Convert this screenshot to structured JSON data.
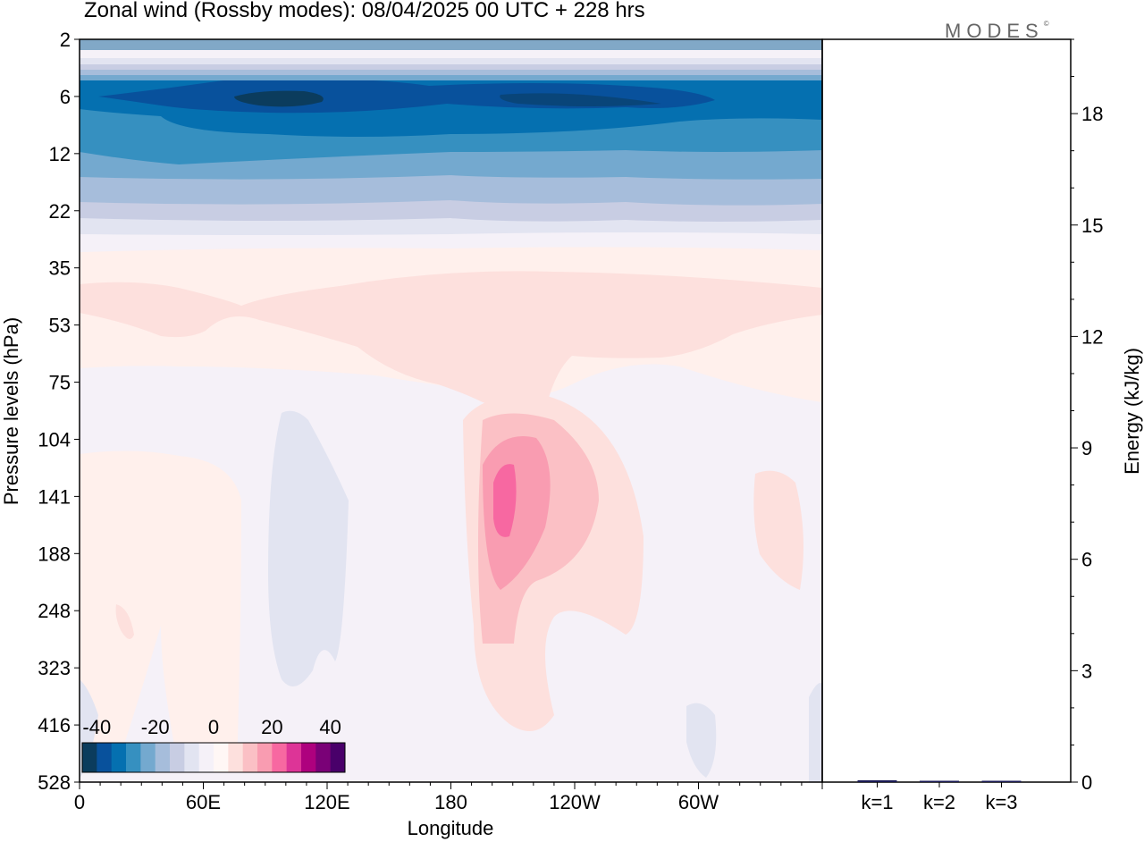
{
  "header": {
    "title": "Zonal wind (Rossby modes):  08/04/2025  00 UTC  + 228 hrs",
    "logo": "MODES",
    "logo_mark": "©"
  },
  "chart_data": [
    {
      "type": "heatmap",
      "title": "Zonal wind (Rossby modes):  08/04/2025  00 UTC  + 228 hrs",
      "xlabel": "Longitude",
      "ylabel": "Pressure levels (hPa)",
      "x_ticks": [
        "0",
        "60E",
        "120E",
        "180",
        "120W",
        "60W"
      ],
      "x_tick_degrees_east": [
        0,
        60,
        120,
        180,
        240,
        300
      ],
      "xlim": [
        0,
        360
      ],
      "y_ticks": [
        2,
        6,
        12,
        22,
        35,
        53,
        75,
        104,
        141,
        188,
        248,
        323,
        416,
        528
      ],
      "colorbar": {
        "tick_labels": [
          "-40",
          "-20",
          "0",
          "20",
          "40"
        ],
        "levels": [
          -45,
          -40,
          -35,
          -30,
          -25,
          -20,
          -15,
          -10,
          -5,
          0,
          5,
          10,
          15,
          20,
          25,
          30,
          35,
          40,
          45
        ],
        "colors": [
          "#0b3c5d",
          "#08519c",
          "#0570b0",
          "#3690c0",
          "#74a9cf",
          "#a6bddb",
          "#c8cde3",
          "#e2e4f1",
          "#f5f1f8",
          "#fff7f5",
          "#fde0dd",
          "#fbc0c5",
          "#f99cb1",
          "#f768a1",
          "#dd3497",
          "#ae017e",
          "#7a0177",
          "#49006a"
        ]
      },
      "regions": [
        {
          "name": "negative bands",
          "value_range": [
            -45,
            -5
          ],
          "pressure_range": [
            2,
            30
          ]
        },
        {
          "name": "jet core",
          "value": -45,
          "lon": 95,
          "level": 6
        },
        {
          "name": "secondary core",
          "value": -40,
          "lon": 225,
          "level": 6
        },
        {
          "name": "positive layer",
          "value_range": [
            0,
            10
          ],
          "pressure_range": [
            30,
            90
          ]
        },
        {
          "name": "positive maximum",
          "value": 20,
          "lon": 197,
          "level": 141
        }
      ]
    },
    {
      "type": "bar",
      "categories": [
        "k=1",
        "k=2",
        "k=3"
      ],
      "values": [
        0.05,
        0.03,
        0.02
      ],
      "ylabel": "Energy (kJ/kg)",
      "y_ticks": [
        0,
        3,
        6,
        9,
        12,
        15,
        18
      ],
      "ylim": [
        0,
        20
      ]
    }
  ]
}
